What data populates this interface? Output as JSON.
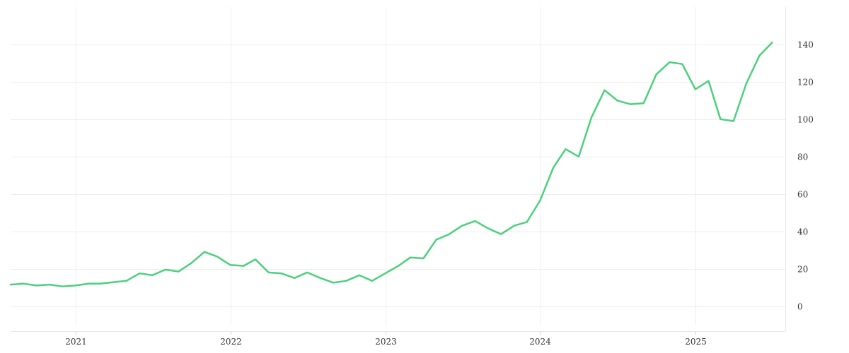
{
  "chart_data": {
    "type": "line",
    "title": "",
    "xlabel": "",
    "ylabel": "",
    "grid": true,
    "legend": "none",
    "line_color": "#4cd07d",
    "x_ticks": [
      "2021",
      "2022",
      "2023",
      "2024",
      "2025"
    ],
    "y_ticks": [
      0,
      20,
      40,
      60,
      80,
      100,
      120,
      140
    ],
    "ylim": [
      -10,
      160
    ],
    "xlim": [
      "2020-08-01",
      "2025-08-01"
    ],
    "x": [
      "2020-08-01",
      "2020-09-01",
      "2020-10-01",
      "2020-11-01",
      "2020-12-01",
      "2021-01-01",
      "2021-02-01",
      "2021-03-01",
      "2021-04-01",
      "2021-05-01",
      "2021-06-01",
      "2021-07-01",
      "2021-08-01",
      "2021-09-01",
      "2021-10-01",
      "2021-11-01",
      "2021-12-01",
      "2022-01-01",
      "2022-02-01",
      "2022-03-01",
      "2022-04-01",
      "2022-05-01",
      "2022-06-01",
      "2022-07-01",
      "2022-08-01",
      "2022-09-01",
      "2022-10-01",
      "2022-11-01",
      "2022-12-01",
      "2023-01-01",
      "2023-02-01",
      "2023-03-01",
      "2023-04-01",
      "2023-05-01",
      "2023-06-01",
      "2023-07-01",
      "2023-08-01",
      "2023-09-01",
      "2023-10-01",
      "2023-11-01",
      "2023-12-01",
      "2024-01-01",
      "2024-02-01",
      "2024-03-01",
      "2024-04-01",
      "2024-05-01",
      "2024-06-01",
      "2024-07-01",
      "2024-08-01",
      "2024-09-01",
      "2024-10-01",
      "2024-11-01",
      "2024-12-01",
      "2025-01-01",
      "2025-02-01",
      "2025-03-01",
      "2025-04-01",
      "2025-05-01",
      "2025-06-01",
      "2025-07-01"
    ],
    "series": [
      {
        "values": [
          11.5,
          12.0,
          11.0,
          11.5,
          10.5,
          11.0,
          12.0,
          12.0,
          12.8,
          13.5,
          17.5,
          16.5,
          19.5,
          18.5,
          23.0,
          29.0,
          26.5,
          22.0,
          21.5,
          25.0,
          18.0,
          17.5,
          15.0,
          18.0,
          15.0,
          12.5,
          13.5,
          16.5,
          13.5,
          17.5,
          21.5,
          26.0,
          25.5,
          35.5,
          38.5,
          43.0,
          45.5,
          41.5,
          38.5,
          43.0,
          45.0,
          56.5,
          74.0,
          84.0,
          80.0,
          101.0,
          115.5,
          110.0,
          108.0,
          108.5,
          124.0,
          130.5,
          129.5,
          116.0,
          120.5,
          100.0,
          99.0,
          119.0,
          134.0,
          141.0
        ]
      }
    ]
  }
}
